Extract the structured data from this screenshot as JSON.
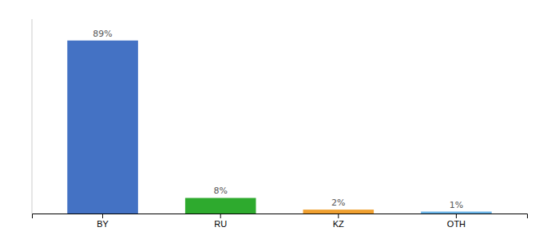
{
  "chart_data": {
    "type": "bar",
    "categories": [
      "BY",
      "RU",
      "KZ",
      "OTH"
    ],
    "values": [
      89,
      8,
      2,
      1
    ],
    "value_labels": [
      "89%",
      "8%",
      "2%",
      "1%"
    ],
    "colors": [
      "#4472c4",
      "#2eaa2e",
      "#f0a030",
      "#6ab4e8"
    ],
    "ylim": [
      0,
      100
    ],
    "data_labels": true,
    "tick_labels": "x"
  }
}
